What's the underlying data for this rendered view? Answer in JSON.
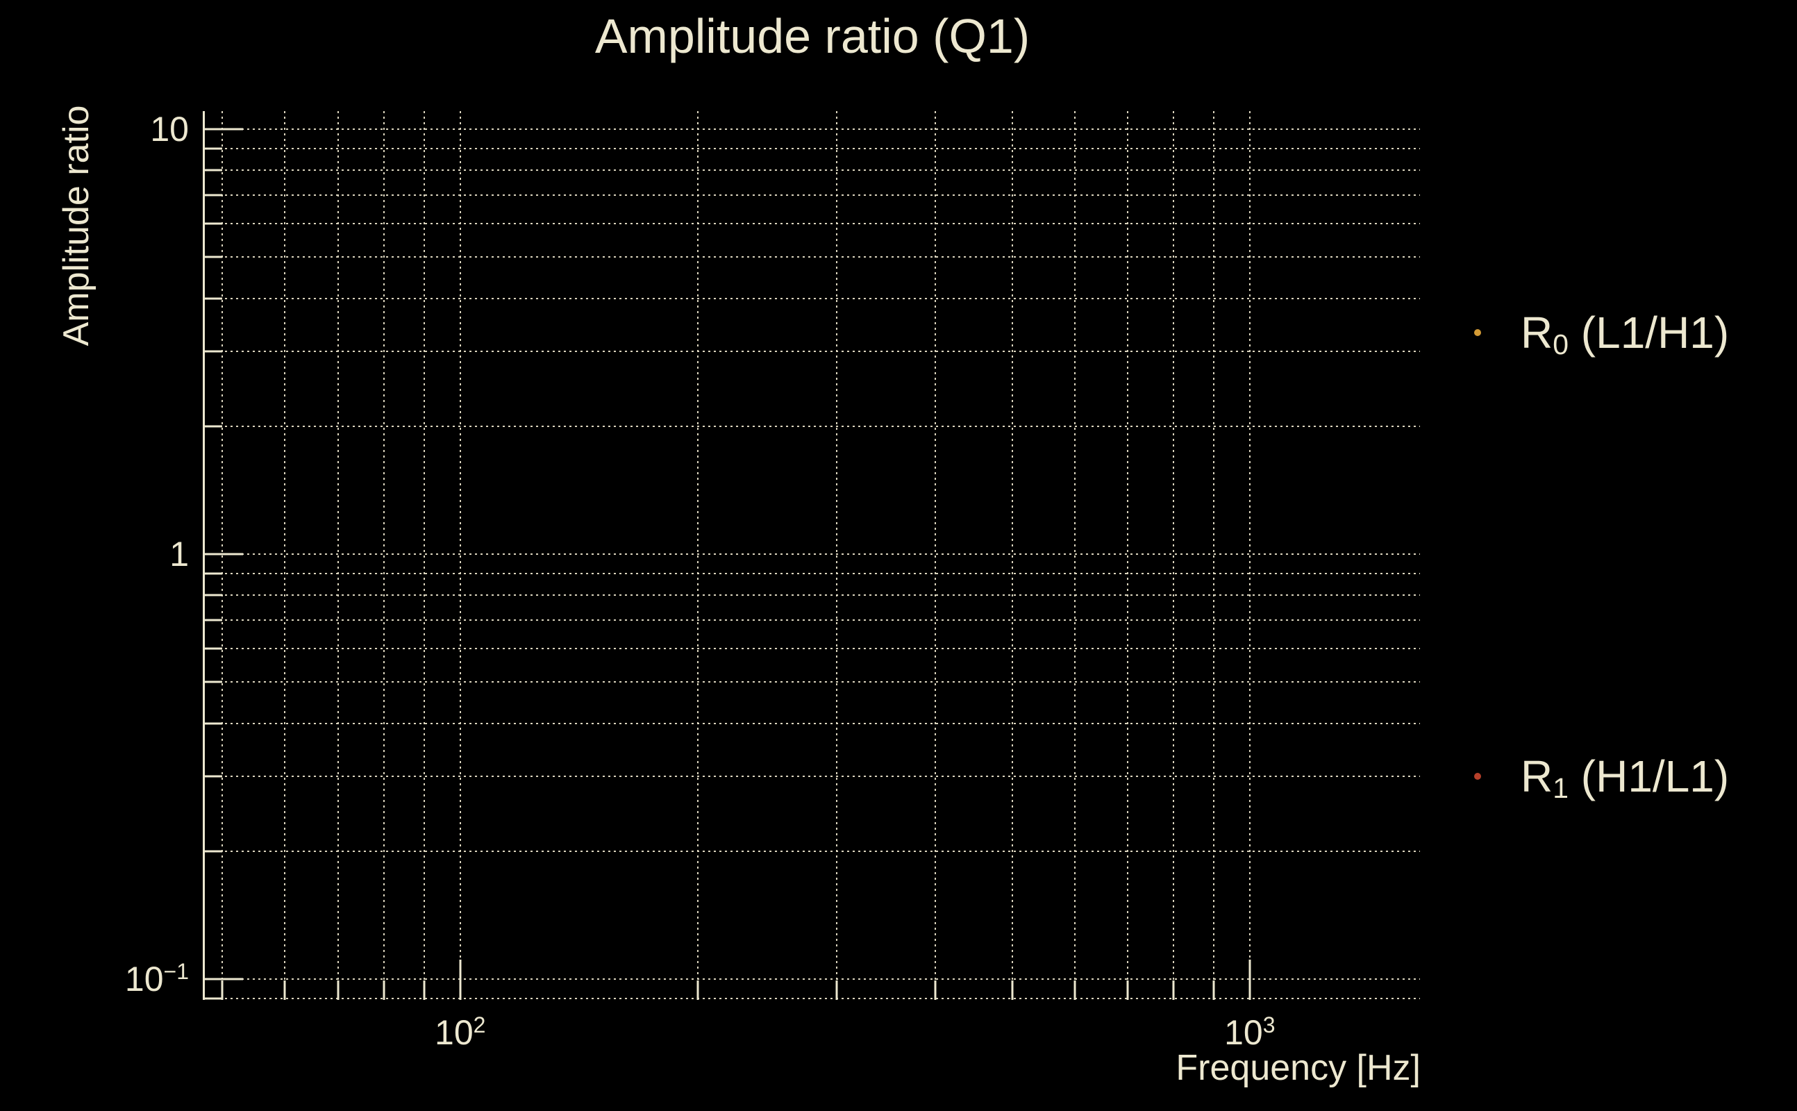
{
  "figure": {
    "background": "#000000",
    "text_color": "#EDE8D0",
    "grid_color": "#E7E0C8"
  },
  "chart_data": {
    "type": "scatter",
    "title": "Amplitude ratio (Q1)",
    "xlabel": "Frequency [Hz]",
    "ylabel": "Amplitude ratio",
    "x_scale": "log",
    "y_scale": "log",
    "xlim": [
      47.2,
      1643
    ],
    "ylim": [
      0.0893,
      11.03
    ],
    "grid": {
      "which": "both",
      "style": "dotted"
    },
    "x_major_ticks": [
      {
        "value": 100,
        "base": "10",
        "exp": "2"
      },
      {
        "value": 1000,
        "base": "10",
        "exp": "3"
      }
    ],
    "x_minor_ticks": [
      50,
      60,
      70,
      80,
      90,
      200,
      300,
      400,
      500,
      600,
      700,
      800,
      900
    ],
    "y_major_ticks": [
      {
        "value": 10,
        "base": "10",
        "exp": ""
      },
      {
        "value": 1,
        "base": "1",
        "exp": ""
      },
      {
        "value": 0.1,
        "base": "10",
        "exp": "−1"
      }
    ],
    "y_minor_ticks": [
      9,
      8,
      7,
      6,
      5,
      4,
      3,
      2,
      0.9,
      0.8,
      0.7,
      0.6,
      0.5,
      0.4,
      0.3,
      0.2,
      0.09
    ],
    "legend": {
      "location": "outside-right",
      "items": [
        {
          "name": "R",
          "sub": "0",
          "rest": " (L1/H1)",
          "marker": "dot",
          "marker_color": "#D49B35"
        },
        {
          "name": "R",
          "sub": "1",
          "rest": " (H1/L1)",
          "marker": "dot",
          "marker_color": "#B6402A"
        }
      ]
    },
    "series": [
      {
        "name": "R0 (L1/H1)",
        "marker_color": "#D49B35",
        "points": []
      },
      {
        "name": "R1 (H1/L1)",
        "marker_color": "#B6402A",
        "points": []
      }
    ]
  }
}
